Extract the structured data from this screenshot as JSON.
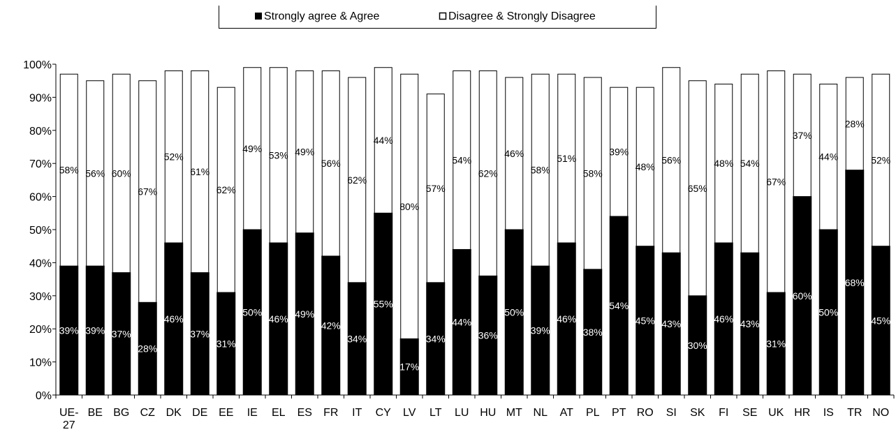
{
  "chart_data": {
    "type": "bar",
    "stacked": true,
    "categories": [
      "UE-27",
      "BE",
      "BG",
      "CZ",
      "DK",
      "DE",
      "EE",
      "IE",
      "EL",
      "ES",
      "FR",
      "IT",
      "CY",
      "LV",
      "LT",
      "LU",
      "HU",
      "MT",
      "NL",
      "AT",
      "PL",
      "PT",
      "RO",
      "SI",
      "SK",
      "FI",
      "SE",
      "UK",
      "HR",
      "IS",
      "TR",
      "NO"
    ],
    "series": [
      {
        "name": "Strongly agree & Agree",
        "color": "#000000",
        "values": [
          39,
          39,
          37,
          28,
          46,
          37,
          31,
          50,
          46,
          49,
          42,
          34,
          55,
          17,
          34,
          44,
          36,
          50,
          39,
          46,
          38,
          54,
          45,
          43,
          30,
          46,
          43,
          31,
          60,
          50,
          68,
          45
        ],
        "labels": [
          "39%",
          "39%",
          "37%",
          "28%",
          "46%",
          "37%",
          "31%",
          "50%",
          "46%",
          "49%",
          "42%",
          "34%",
          "55%",
          "17%",
          "34%",
          "44%",
          "36%",
          "50%",
          "39%",
          "46%",
          "38%",
          "54%",
          "45%",
          "43%",
          "30%",
          "46%",
          "43%",
          "31%",
          "60%",
          "50%",
          "68%",
          "45%"
        ]
      },
      {
        "name": "Disagree & Strongly Disagree",
        "color": "#ffffff",
        "values": [
          58,
          56,
          60,
          67,
          52,
          61,
          62,
          49,
          53,
          49,
          56,
          62,
          44,
          80,
          57,
          54,
          62,
          46,
          58,
          51,
          58,
          39,
          48,
          56,
          65,
          48,
          54,
          67,
          37,
          44,
          28,
          52
        ],
        "labels": [
          "58%",
          "56%",
          "60%",
          "67%",
          "52%",
          "61%",
          "62%",
          "49%",
          "53%",
          "49%",
          "56%",
          "62%",
          "44%",
          "80%",
          "57%",
          "54%",
          "62%",
          "46%",
          "58%",
          "51%",
          "58%",
          "39%",
          "48%",
          "56%",
          "65%",
          "48%",
          "54%",
          "67%",
          "37%",
          "44%",
          "28%",
          "52%"
        ]
      }
    ],
    "ylim": [
      0,
      100
    ],
    "y_ticks": [
      "0%",
      "10%",
      "20%",
      "30%",
      "40%",
      "50%",
      "60%",
      "70%",
      "80%",
      "90%",
      "100%"
    ],
    "legend_position": "top-center",
    "grid": false
  }
}
